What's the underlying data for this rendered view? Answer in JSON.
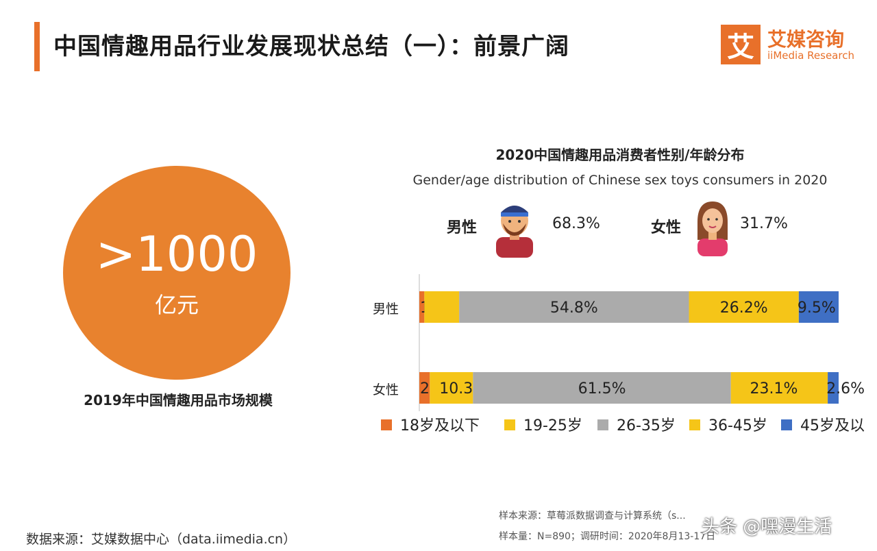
{
  "header": {
    "title": "中国情趣用品行业发展现状总结（一）：前景广阔",
    "logo_mark": "艾",
    "logo_cn": "艾媒咨询",
    "logo_en": "iiMedia Research"
  },
  "market": {
    "value": ">1000",
    "unit": "亿元",
    "caption": "2019年中国情趣用品市场规模",
    "color": "#e8822e"
  },
  "gender_summary": {
    "male_label": "男性",
    "male_pct": "68.3%",
    "female_label": "女性",
    "female_pct": "31.7%",
    "male_icon": "man-avatar-icon",
    "female_icon": "woman-avatar-icon"
  },
  "chart_data": {
    "type": "bar",
    "orientation": "horizontal",
    "stacked": true,
    "title": "2020中国情趣用品消费者性别/年龄分布",
    "subtitle": "Gender/age distribution of Chinese sex toys consumers in 2020",
    "categories": [
      "男性",
      "女性"
    ],
    "series": [
      {
        "name": "18岁及以下",
        "color": "#e8702a",
        "values": [
          1.2,
          2.5
        ],
        "labels": [
          "1.2%",
          "2.5%"
        ]
      },
      {
        "name": "19-25岁",
        "color": "#f5c518",
        "values": [
          8.3,
          10.3
        ],
        "labels": [
          "8.3%",
          "10.3%"
        ]
      },
      {
        "name": "26-35岁",
        "color": "#ababab",
        "values": [
          54.8,
          61.5
        ],
        "labels": [
          "54.8%",
          "61.5%"
        ]
      },
      {
        "name": "36-45岁",
        "color": "#f5c518",
        "values": [
          26.2,
          23.1
        ],
        "labels": [
          "26.2%",
          "23.1%"
        ]
      },
      {
        "name": "45岁及以上",
        "color": "#3f6fc4",
        "values": [
          9.5,
          2.6
        ],
        "labels": [
          "9.5%",
          "2.6%"
        ]
      }
    ],
    "legend": [
      "18岁及以下",
      "19-25岁",
      "26-35岁",
      "36-45岁",
      "45岁及以"
    ],
    "legend_position": "bottom",
    "xlim": [
      0,
      100
    ]
  },
  "footer": {
    "source": "数据来源：艾媒数据中心（data.iimedia.cn）",
    "sample_source": "样本来源：草莓派数据调查与计算系统（s...",
    "sample_size": "样本量：N=890；调研时间：2020年8月13-17日",
    "watermark": "头条 @嘿漫生活"
  }
}
